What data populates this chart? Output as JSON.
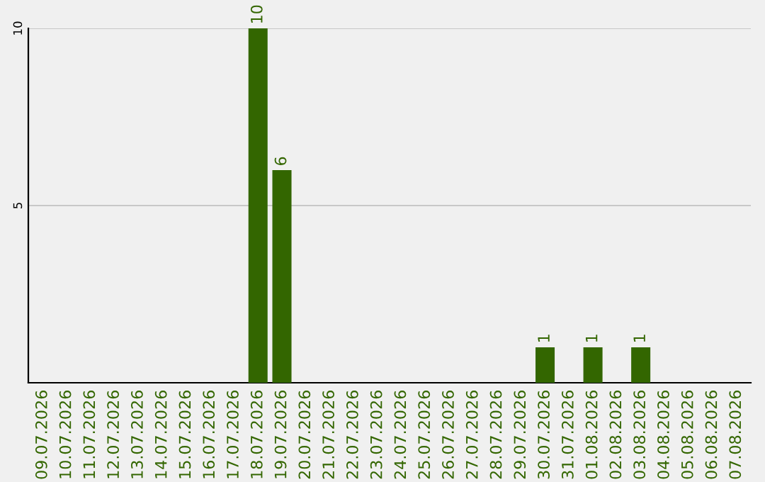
{
  "chart_data": {
    "type": "bar",
    "categories": [
      "09.07.2026",
      "10.07.2026",
      "11.07.2026",
      "12.07.2026",
      "13.07.2026",
      "14.07.2026",
      "15.07.2026",
      "16.07.2026",
      "17.07.2026",
      "18.07.2026",
      "19.07.2026",
      "20.07.2026",
      "21.07.2026",
      "22.07.2026",
      "23.07.2026",
      "24.07.2026",
      "25.07.2026",
      "26.07.2026",
      "27.07.2026",
      "28.07.2026",
      "29.07.2026",
      "30.07.2026",
      "31.07.2026",
      "01.08.2026",
      "02.08.2026",
      "03.08.2026",
      "04.08.2026",
      "05.08.2026",
      "06.08.2026",
      "07.08.2026"
    ],
    "values": [
      0,
      0,
      0,
      0,
      0,
      0,
      0,
      0,
      0,
      10,
      6,
      0,
      0,
      0,
      0,
      0,
      0,
      0,
      0,
      0,
      0,
      1,
      0,
      1,
      0,
      1,
      0,
      0,
      0,
      0
    ],
    "value_labels": [
      null,
      null,
      null,
      null,
      null,
      null,
      null,
      null,
      null,
      "10",
      "6",
      null,
      null,
      null,
      null,
      null,
      null,
      null,
      null,
      null,
      null,
      "1",
      null,
      "1",
      null,
      "1",
      null,
      null,
      null,
      null
    ],
    "color": "#336600",
    "ylim": [
      0,
      10
    ],
    "yticks": [
      5,
      10
    ],
    "grid": "y"
  }
}
